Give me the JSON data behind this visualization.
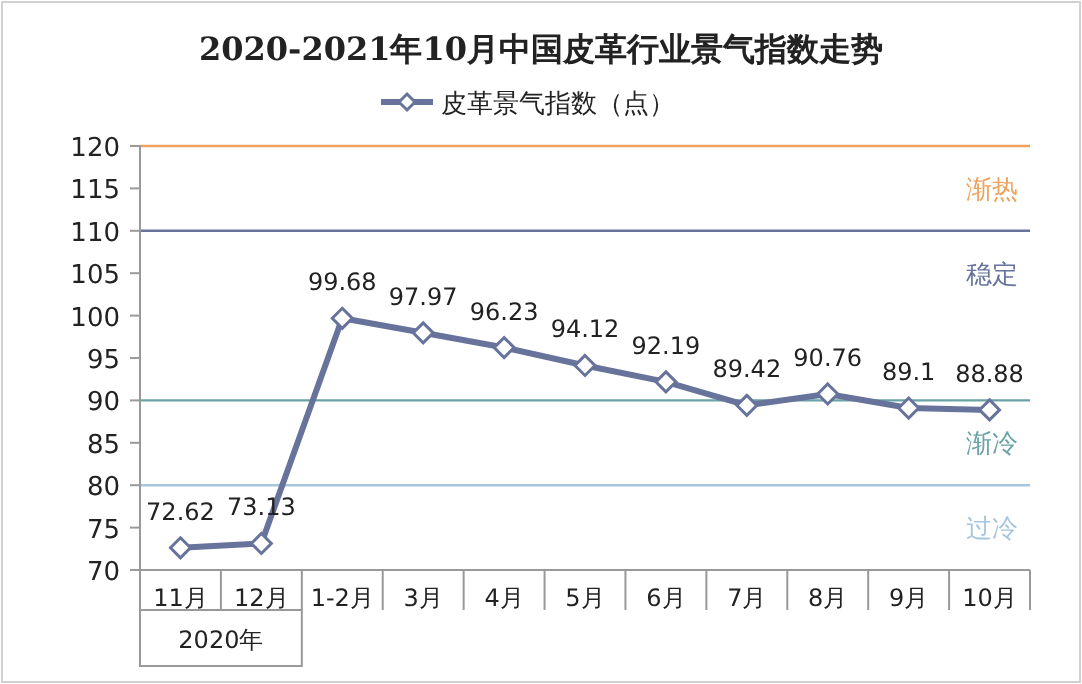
{
  "chart_data": {
    "type": "line",
    "title": "2020-2021年10月中国皮革行业景气指数走势",
    "categories": [
      "11月",
      "12月",
      "1-2月",
      "3月",
      "4月",
      "5月",
      "6月",
      "7月",
      "8月",
      "9月",
      "10月"
    ],
    "series": [
      {
        "name": "皮革景气指数（点）",
        "color": "#67739b",
        "values": [
          72.62,
          73.13,
          99.68,
          97.97,
          96.23,
          94.12,
          92.19,
          89.42,
          90.76,
          89.1,
          88.88
        ]
      }
    ],
    "ylim": [
      70,
      120
    ],
    "yticks": [
      70,
      75,
      80,
      85,
      90,
      95,
      100,
      105,
      110,
      115,
      120
    ],
    "ref_lines": [
      {
        "axis": "y",
        "value": 120,
        "label": "渐热",
        "color": "#eda35e"
      },
      {
        "axis": "y",
        "value": 110,
        "label": "稳定",
        "color": "#67739b"
      },
      {
        "axis": "y",
        "value": 90,
        "label": "渐冷",
        "color": "#6aa3a6"
      },
      {
        "axis": "y",
        "value": 80,
        "label": "过冷",
        "color": "#a6c6de"
      }
    ],
    "annotations": [
      "2020年"
    ],
    "data_labels": true,
    "marker": "diamond",
    "line_style": "solid",
    "legend": "top",
    "grid": false
  }
}
